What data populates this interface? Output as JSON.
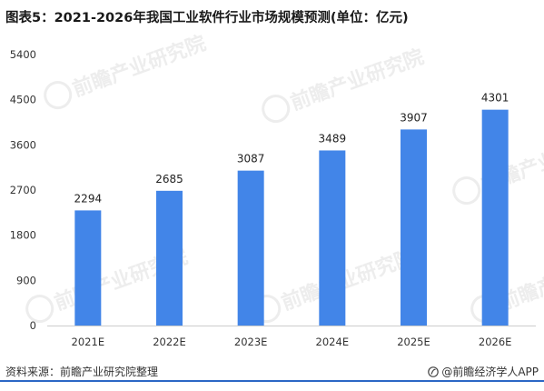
{
  "title": "图表5：2021-2026年我国工业软件行业市场规模预测(单位：亿元)",
  "source": "资料来源：前瞻产业研究院整理",
  "credit": "@前瞻经济学人APP",
  "watermark_text": "前瞻产业研究院",
  "colors": {
    "bar": "#4285e8",
    "axis": "#cccccc",
    "footer_rule": "#2b67c5"
  },
  "chart_data": {
    "type": "bar",
    "title": "图表5：2021-2026年我国工业软件行业市场规模预测(单位：亿元)",
    "categories": [
      "2021E",
      "2022E",
      "2023E",
      "2024E",
      "2025E",
      "2026E"
    ],
    "values": [
      2294,
      2685,
      3087,
      3489,
      3907,
      4301
    ],
    "ylim": [
      0,
      5400
    ],
    "yticks": [
      0,
      900,
      1800,
      2700,
      3600,
      4500,
      5400
    ],
    "xlabel": "",
    "ylabel": "",
    "grid": false,
    "data_labels": true
  }
}
